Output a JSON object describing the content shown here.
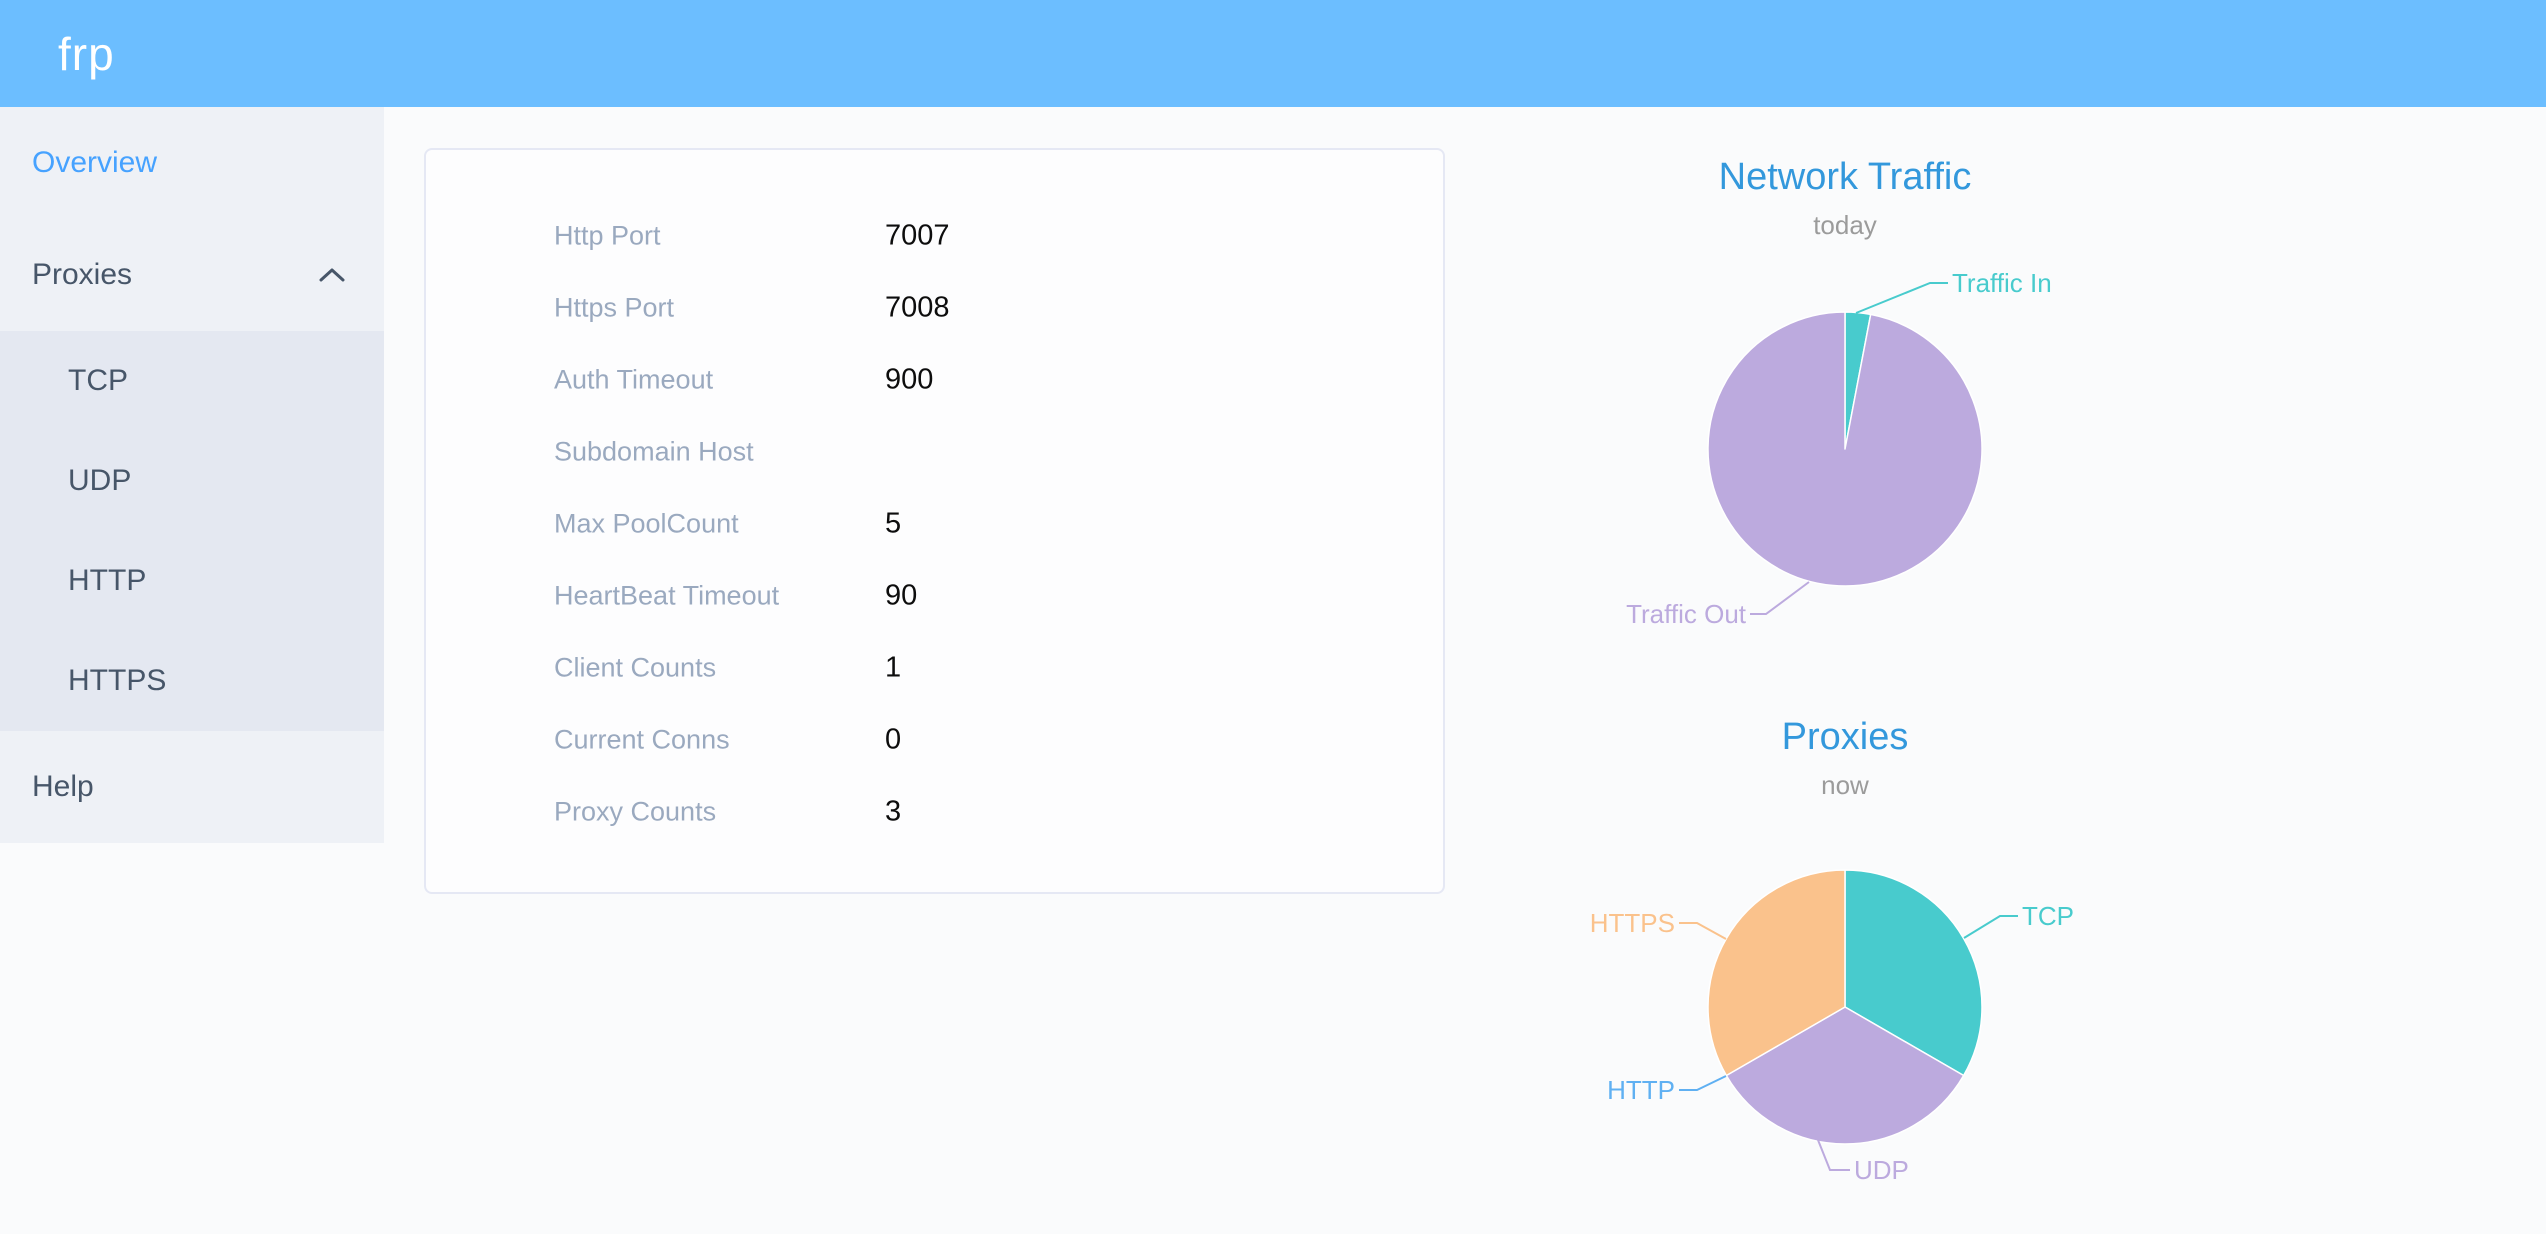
{
  "header": {
    "logo": "frp"
  },
  "sidebar": {
    "items": [
      {
        "label": "Overview",
        "active": true
      },
      {
        "label": "Proxies",
        "expanded": true
      },
      {
        "label": "TCP"
      },
      {
        "label": "UDP"
      },
      {
        "label": "HTTP"
      },
      {
        "label": "HTTPS"
      },
      {
        "label": "Help"
      }
    ]
  },
  "config": {
    "rows": [
      {
        "label": "Http Port",
        "value": "7007"
      },
      {
        "label": "Https Port",
        "value": "7008"
      },
      {
        "label": "Auth Timeout",
        "value": "900"
      },
      {
        "label": "Subdomain Host",
        "value": ""
      },
      {
        "label": "Max PoolCount",
        "value": "5"
      },
      {
        "label": "HeartBeat Timeout",
        "value": "90"
      },
      {
        "label": "Client Counts",
        "value": "1"
      },
      {
        "label": "Current Conns",
        "value": "0"
      },
      {
        "label": "Proxy Counts",
        "value": "3"
      }
    ]
  },
  "chart_data": [
    {
      "type": "pie",
      "title": "Network Traffic",
      "subtitle": "today",
      "legend_position": "callout-labels",
      "series": [
        {
          "name": "Traffic In",
          "value": 3,
          "color": "#48cbcd"
        },
        {
          "name": "Traffic Out",
          "value": 97,
          "color": "#bcaade"
        }
      ]
    },
    {
      "type": "pie",
      "title": "Proxies",
      "subtitle": "now",
      "legend_position": "callout-labels",
      "series": [
        {
          "name": "TCP",
          "value": 1,
          "color": "#48cbcd"
        },
        {
          "name": "UDP",
          "value": 1,
          "color": "#bcaade"
        },
        {
          "name": "HTTP",
          "value": 0,
          "color": "#5fb0f2"
        },
        {
          "name": "HTTPS",
          "value": 1,
          "color": "#fac28c"
        }
      ]
    }
  ],
  "colors": {
    "header_bg": "#6cbeff",
    "sidebar_bg": "#eef1f6",
    "submenu_bg": "#e4e8f1",
    "active_item": "#46a2ff",
    "menu_text": "#475669",
    "chart_title": "#3398dc",
    "config_label": "#9aa9bf",
    "config_value": "#0d0d0d"
  }
}
